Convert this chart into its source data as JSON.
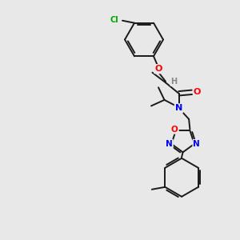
{
  "bg_color": "#e8e8e8",
  "bond_color": "#1a1a1a",
  "atom_colors": {
    "N": "#0000ff",
    "O": "#ff0000",
    "Cl": "#00aa00",
    "H": "#888888",
    "C": "#1a1a1a"
  }
}
